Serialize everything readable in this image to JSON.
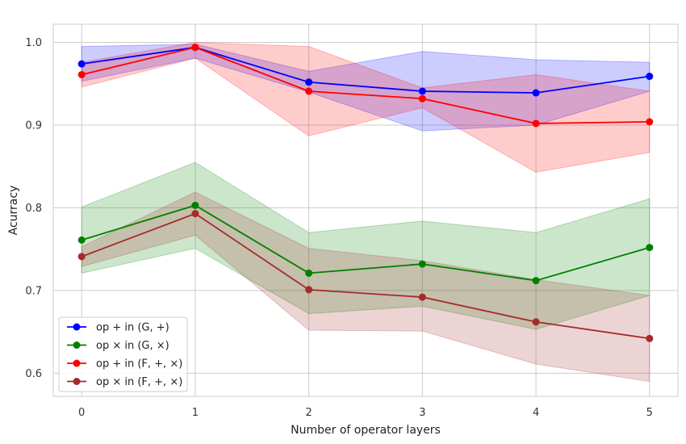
{
  "chart_data": {
    "type": "line",
    "title": "",
    "xlabel": "Number of operator layers",
    "ylabel": "Acurracy",
    "x": [
      0,
      1,
      2,
      3,
      4,
      5
    ],
    "xlim": [
      -0.25,
      5.25
    ],
    "ylim": [
      0.572,
      1.022
    ],
    "xticks": [
      0,
      1,
      2,
      3,
      4,
      5
    ],
    "yticks": [
      0.6,
      0.7,
      0.8,
      0.9,
      1.0
    ],
    "ytick_labels": [
      "0.6",
      "0.7",
      "0.8",
      "0.9",
      "1.0"
    ],
    "grid": true,
    "legend_position": "lower-left",
    "series": [
      {
        "name": "op + in (G, +)",
        "color": "#0000ff",
        "values": [
          0.974,
          0.994,
          0.952,
          0.941,
          0.939,
          0.959
        ],
        "lower": [
          0.953,
          0.981,
          0.94,
          0.893,
          0.9,
          0.941
        ],
        "upper": [
          0.995,
          0.998,
          0.965,
          0.989,
          0.979,
          0.976
        ]
      },
      {
        "name": "op × in (G, ×)",
        "color": "#008000",
        "values": [
          0.761,
          0.803,
          0.721,
          0.732,
          0.712,
          0.752
        ],
        "lower": [
          0.721,
          0.751,
          0.672,
          0.681,
          0.653,
          0.694
        ],
        "upper": [
          0.801,
          0.855,
          0.77,
          0.784,
          0.77,
          0.811
        ]
      },
      {
        "name": "op + in (F, +, ×)",
        "color": "#ff0000",
        "values": [
          0.961,
          0.994,
          0.941,
          0.932,
          0.902,
          0.904
        ],
        "lower": [
          0.946,
          0.981,
          0.887,
          0.921,
          0.843,
          0.867
        ],
        "upper": [
          0.976,
          1.0,
          0.995,
          0.945,
          0.961,
          0.941
        ]
      },
      {
        "name": "op × in (F, +, ×)",
        "color": "#a52a2a",
        "values": [
          0.741,
          0.793,
          0.701,
          0.692,
          0.662,
          0.642
        ],
        "lower": [
          0.729,
          0.767,
          0.652,
          0.651,
          0.611,
          0.59
        ],
        "upper": [
          0.753,
          0.819,
          0.751,
          0.736,
          0.713,
          0.694
        ]
      }
    ]
  }
}
